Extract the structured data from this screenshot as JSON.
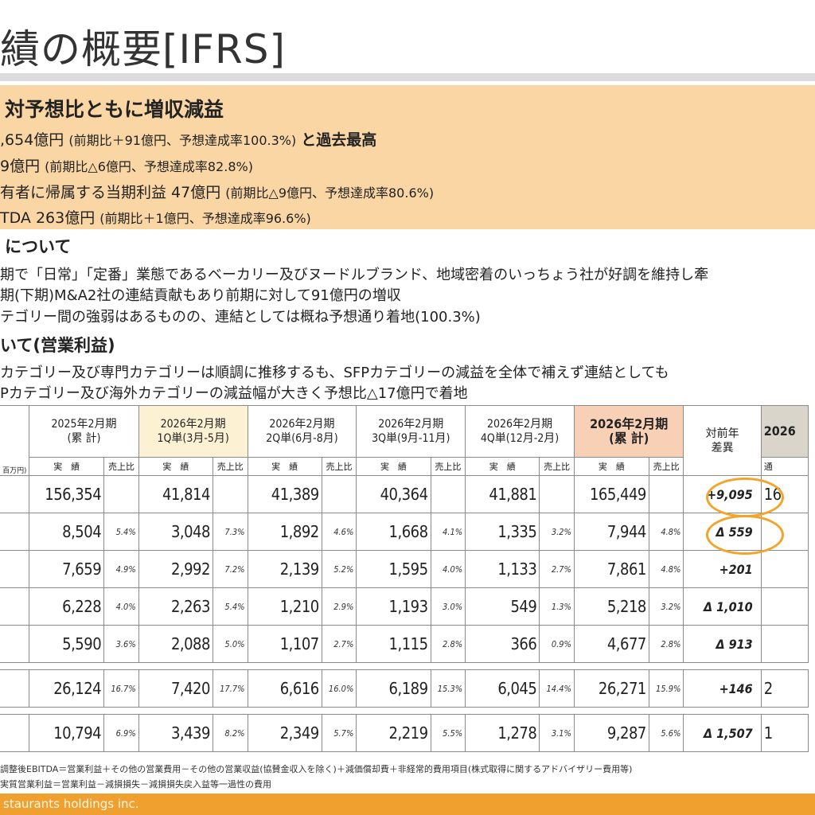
{
  "title": "績の概要[IFRS]",
  "summary": {
    "heading": "対予想比ともに増収減益",
    "lines": [
      {
        "main": ",654億円",
        "sub": "(前期比＋91億円、予想達成率100.3%)",
        "tail": "と過去最高"
      },
      {
        "main": "9億円",
        "sub": "(前期比△6億円、予想達成率82.8%)",
        "tail": ""
      },
      {
        "main": "有者に帰属する当期利益 47億円",
        "sub": "(前期比△9億円、予想達成率80.6%)",
        "tail": ""
      },
      {
        "main": "TDA 263億円",
        "sub": "(前期比＋1億円、予想達成率96.6%)",
        "tail": ""
      }
    ]
  },
  "section1": {
    "heading": "について",
    "bullets": [
      "期で「日常」「定番」業態であるベーカリー及びヌードルブランド、地域密着のいっちょう社が好調を維持し牽",
      "期(下期)M&A2社の連結貢献もあり前期に対して91億円の増収",
      "テゴリー間の強弱はあるものの、連結としては概ね予想通り着地(100.3%)"
    ]
  },
  "section2": {
    "heading": "いて(営業利益)",
    "bullets": [
      "カテゴリー及び専門カテゴリーは順調に推移するも、SFPカテゴリーの減益を全体で補えず連結としても",
      "Pカテゴリー及び海外カテゴリーの減益幅が大きく予想比△17億円で着地"
    ]
  },
  "table": {
    "unit_label": "百万円)",
    "periods": [
      {
        "line1": "2025年2月期",
        "line2": "(累 計)"
      },
      {
        "line1": "2026年2月期",
        "line2": "1Q単(3月-5月)"
      },
      {
        "line1": "2026年2月期",
        "line2": "2Q単(6月-8月)"
      },
      {
        "line1": "2026年2月期",
        "line2": "3Q単(9月-11月)"
      },
      {
        "line1": "2026年2月期",
        "line2": "4Q単(12月-2月)"
      },
      {
        "line1": "2026年2月期",
        "line2": "(累 計)"
      }
    ],
    "diff_header": {
      "line1": "対前年",
      "line2": "差異"
    },
    "forecast_header": "2026",
    "sub_actual": "実　績",
    "sub_ratio": "売上比",
    "forecast_sub": "通",
    "rows": [
      {
        "cells": [
          [
            "156,354",
            ""
          ],
          [
            "41,814",
            ""
          ],
          [
            "41,389",
            ""
          ],
          [
            "40,364",
            ""
          ],
          [
            "41,881",
            ""
          ],
          [
            "165,449",
            ""
          ]
        ],
        "diff": "+9,095",
        "forecast": "16"
      },
      {
        "cells": [
          [
            "8,504",
            "5.4%"
          ],
          [
            "3,048",
            "7.3%"
          ],
          [
            "1,892",
            "4.6%"
          ],
          [
            "1,668",
            "4.1%"
          ],
          [
            "1,335",
            "3.2%"
          ],
          [
            "7,944",
            "4.8%"
          ]
        ],
        "diff": "Δ 559",
        "forecast": ""
      },
      {
        "cells": [
          [
            "7,659",
            "4.9%"
          ],
          [
            "2,992",
            "7.2%"
          ],
          [
            "2,139",
            "5.2%"
          ],
          [
            "1,595",
            "4.0%"
          ],
          [
            "1,133",
            "2.7%"
          ],
          [
            "7,861",
            "4.8%"
          ]
        ],
        "diff": "+201",
        "forecast": ""
      },
      {
        "cells": [
          [
            "6,228",
            "4.0%"
          ],
          [
            "2,263",
            "5.4%"
          ],
          [
            "1,210",
            "2.9%"
          ],
          [
            "1,193",
            "3.0%"
          ],
          [
            "549",
            "1.3%"
          ],
          [
            "5,218",
            "3.2%"
          ]
        ],
        "diff": "Δ 1,010",
        "forecast": ""
      },
      {
        "cells": [
          [
            "5,590",
            "3.6%"
          ],
          [
            "2,088",
            "5.0%"
          ],
          [
            "1,107",
            "2.7%"
          ],
          [
            "1,115",
            "2.8%"
          ],
          [
            "366",
            "0.9%"
          ],
          [
            "4,677",
            "2.8%"
          ]
        ],
        "diff": "Δ 913",
        "forecast": ""
      },
      {
        "cells": [
          [
            "26,124",
            "16.7%"
          ],
          [
            "7,420",
            "17.7%"
          ],
          [
            "6,616",
            "16.0%"
          ],
          [
            "6,189",
            "15.3%"
          ],
          [
            "6,045",
            "14.4%"
          ],
          [
            "26,271",
            "15.9%"
          ]
        ],
        "diff": "+146",
        "forecast": "2"
      },
      {
        "cells": [
          [
            "10,794",
            "6.9%"
          ],
          [
            "3,439",
            "8.2%"
          ],
          [
            "2,349",
            "5.7%"
          ],
          [
            "2,219",
            "5.5%"
          ],
          [
            "1,278",
            "3.1%"
          ],
          [
            "9,287",
            "5.6%"
          ]
        ],
        "diff": "Δ 1,507",
        "forecast": "1"
      }
    ]
  },
  "footnotes": [
    "調整後EBITDA＝営業利益＋その他の営業費用－その他の営業収益(協賛金収入を除く)＋減価償却費＋非経常的費用項目(株式取得に関するアドバイザリー費用等)",
    "実質営業利益＝営業利益－減損損失－減損損失戻入益等一過性の費用"
  ],
  "footer": "staurants holdings inc.",
  "colors": {
    "accent_orange": "#f0a02e",
    "summary_bg": "#f9d6a3",
    "highlight_circle": "#f3a42b"
  }
}
